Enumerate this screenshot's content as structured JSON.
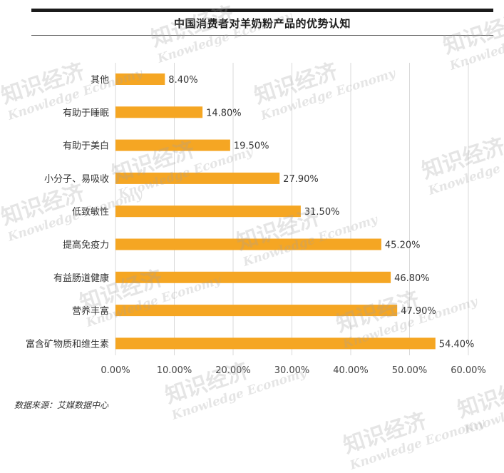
{
  "header": {
    "title": "中国消费者对羊奶粉产品的优势认知"
  },
  "footer": {
    "source": "数据来源：艾媒数据中心"
  },
  "watermark": {
    "cn": "知识经济",
    "en": "Knowledge Economy"
  },
  "colors": {
    "bar": "#F5A623",
    "grid": "#d9d9d9",
    "text": "#333333"
  },
  "chart_data": {
    "type": "bar",
    "orientation": "horizontal",
    "title": "中国消费者对羊奶粉产品的优势认知",
    "categories": [
      "其他",
      "有助于睡眠",
      "有助于美白",
      "小分子、易吸收",
      "低致敏性",
      "提高免疫力",
      "有益肠道健康",
      "营养丰富",
      "富含矿物质和维生素"
    ],
    "values": [
      8.4,
      14.8,
      19.5,
      27.9,
      31.5,
      45.2,
      46.8,
      47.9,
      54.4
    ],
    "value_labels": [
      "8.40%",
      "14.80%",
      "19.50%",
      "27.90%",
      "31.50%",
      "45.20%",
      "46.80%",
      "47.90%",
      "54.40%"
    ],
    "xlim": [
      0,
      60
    ],
    "x_ticks": [
      "0.00%",
      "10.00%",
      "20.00%",
      "30.00%",
      "40.00%",
      "50.00%",
      "60.00%"
    ],
    "grid": true,
    "legend": "none"
  }
}
